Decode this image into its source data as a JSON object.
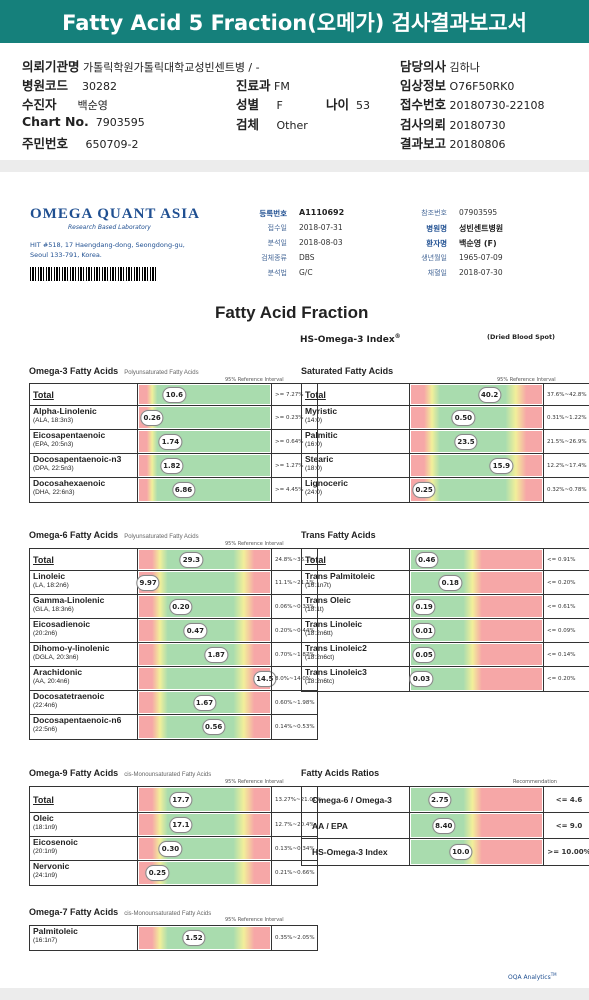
{
  "title": "Fatty Acid 5 Fraction(오메가) 검사결과보고서",
  "header": {
    "institution_label": "의뢰기관명",
    "institution": "가톨릭학원가톨릭대학교성빈센트병 / -",
    "doctor_label": "담당의사",
    "doctor": "김하나",
    "hospital_code_label": "병원코드",
    "hospital_code": "30282",
    "dept_label": "진료과",
    "dept": "FM",
    "clinical_label": "임상정보",
    "clinical": "O76F50RK0",
    "receiver_label": "수진자",
    "receiver": "백순영",
    "sex_label": "성별",
    "sex": "F",
    "age_label": "나이",
    "age": "53",
    "receipt_no_label": "접수번호",
    "receipt_no": "20180730-22108",
    "chart_label": "Chart No.",
    "chart": "7903595",
    "specimen_label": "검체",
    "specimen": "Other",
    "request_label": "검사의뢰",
    "request": "20180730",
    "rrn_label": "주민번호",
    "rrn": "650709-2",
    "report_label": "결과보고",
    "report": "20180806"
  },
  "lab": {
    "logo": "OMEGA QUANT ASIA",
    "logo_sub": "Research Based Laboratory",
    "address1": "HIT #518, 17 Haengdang-dong, Seongdong-gu,",
    "address2": "Seoul 133-791, Korea."
  },
  "meta": {
    "reg_no_label": "등록번호",
    "reg_no": "A1110692",
    "received_label": "접수일",
    "received": "2018-07-31",
    "analyzed_label": "분석일",
    "analyzed": "2018-08-03",
    "sample_label": "검체종류",
    "sample": "DBS",
    "method_label": "분석법",
    "method": "G/C",
    "ref_no_label": "참조번호",
    "ref_no": "07903595",
    "hospital_label": "병원명",
    "hospital": "성빈센트병원",
    "patient_label": "환자명",
    "patient": "백순영 (F)",
    "dob_label": "생년월일",
    "dob": "1965-07-09",
    "collected_label": "채혈일",
    "collected": "2018-07-30"
  },
  "report_title": "Fatty Acid Fraction",
  "hs_index_title": "HS-Omega-3 Index",
  "hs_reg": "®",
  "dried": "(Dried Blood Spot)",
  "ref_interval": "95% Reference Interval",
  "recommendation": "Recommendation",
  "footer": "OQA Analytics",
  "footer_tm": "TM",
  "sections": {
    "omega3": {
      "title": "Omega-3 Fatty Acids",
      "sub": "Polyunsaturated Fatty Acids",
      "rows": [
        {
          "name": "Total",
          "value": "10.6",
          "ref": ">= 7.27%",
          "pos": 0.27
        },
        {
          "name": "Alpha-Linolenic",
          "sub": "(ALA, 18:3n3)",
          "value": "0.26",
          "ref": ">= 0.23%",
          "pos": 0.1
        },
        {
          "name": "Eicosapentaenoic",
          "sub": "(EPA, 20:5n3)",
          "value": "1.74",
          "ref": ">= 0.64%",
          "pos": 0.24
        },
        {
          "name": "Docosapentaenoic-n3",
          "sub": "(DPA, 22:5n3)",
          "value": "1.82",
          "ref": ">= 1.27%",
          "pos": 0.25
        },
        {
          "name": "Docosahexaenoic",
          "sub": "(DHA, 22:6n3)",
          "value": "6.86",
          "ref": ">= 4.45%",
          "pos": 0.34
        }
      ]
    },
    "saturated": {
      "title": "Saturated Fatty Acids",
      "rows": [
        {
          "name": "Total",
          "value": "40.2",
          "ref": "37.6%~42.8%",
          "pos": 0.6
        },
        {
          "name": "Myristic",
          "sub": "(14:0)",
          "value": "0.50",
          "ref": "0.31%~1.22%",
          "pos": 0.4
        },
        {
          "name": "Palmitic",
          "sub": "(16:0)",
          "value": "23.5",
          "ref": "21.5%~26.9%",
          "pos": 0.42
        },
        {
          "name": "Stearic",
          "sub": "(18:0)",
          "value": "15.9",
          "ref": "12.2%~17.4%",
          "pos": 0.69
        },
        {
          "name": "Lignoceric",
          "sub": "(24:0)",
          "value": "0.25",
          "ref": "0.32%~0.78%",
          "pos": 0.1
        }
      ]
    },
    "omega6": {
      "title": "Omega-6 Fatty Acids",
      "sub": "Polyunsaturated Fatty Acids",
      "rows": [
        {
          "name": "Total",
          "value": "29.3",
          "ref": "24.8%~36.1%",
          "pos": 0.4
        },
        {
          "name": "Linoleic",
          "sub": "(LA, 18:2n6)",
          "value": "9.97",
          "ref": "11.1%~21.1%",
          "pos": 0.07
        },
        {
          "name": "Gamma-Linolenic",
          "sub": "(GLA, 18:3n6)",
          "value": "0.20",
          "ref": "0.06%~0.33%",
          "pos": 0.32
        },
        {
          "name": "Eicosadienoic",
          "sub": "(20:2n6)",
          "value": "0.47",
          "ref": "0.20%~0.44%",
          "pos": 0.43
        },
        {
          "name": "Dihomo-γ-linolenic",
          "sub": "(DGLA, 20:3n6)",
          "value": "1.87",
          "ref": "0.70%~1.87%",
          "pos": 0.59
        },
        {
          "name": "Arachidonic",
          "sub": "(AA, 20:4n6)",
          "value": "14.5",
          "ref": "8.0%~14.0%",
          "pos": 0.96
        },
        {
          "name": "Docosatetraenoic",
          "sub": "(22:4n6)",
          "value": "1.67",
          "ref": "0.60%~1.98%",
          "pos": 0.5
        },
        {
          "name": "Docosapentaenoic-n6",
          "sub": "(22:5n6)",
          "value": "0.56",
          "ref": "0.14%~0.53%",
          "pos": 0.57
        }
      ]
    },
    "trans": {
      "title": "Trans Fatty Acids",
      "rows": [
        {
          "name": "Total",
          "value": "0.46",
          "ref": "<= 0.91%",
          "pos": 0.12
        },
        {
          "name": "Trans Palmitoleic",
          "sub": "(16:1n7t)",
          "value": "0.18",
          "ref": "<= 0.20%",
          "pos": 0.3
        },
        {
          "name": "Trans Oleic",
          "sub": "(18:1t)",
          "value": "0.19",
          "ref": "<= 0.61%",
          "pos": 0.1
        },
        {
          "name": "Trans Linoleic",
          "sub": "(18:2n6tt)",
          "value": "0.01",
          "ref": "<= 0.09%",
          "pos": 0.1
        },
        {
          "name": "Trans Linoleic2",
          "sub": "(18:2n6ct)",
          "value": "0.05",
          "ref": "<= 0.14%",
          "pos": 0.1
        },
        {
          "name": "Trans Linoleic3",
          "sub": "(18:2n6tc)",
          "value": "0.03",
          "ref": "<= 0.20%",
          "pos": 0.08
        }
      ]
    },
    "omega9": {
      "title": "Omega-9 Fatty Acids",
      "sub": "cis-Monounsaturated Fatty Acids",
      "rows": [
        {
          "name": "Total",
          "value": "17.7",
          "ref": "13.27%~21.01%",
          "pos": 0.32
        },
        {
          "name": "Oleic",
          "sub": "(18:1n9)",
          "value": "17.1",
          "ref": "12.7%~20.4%",
          "pos": 0.32
        },
        {
          "name": "Eicosenoic",
          "sub": "(20:1n9)",
          "value": "0.30",
          "ref": "0.13%~0.34%",
          "pos": 0.24
        },
        {
          "name": "Nervonic",
          "sub": "(24:1n9)",
          "value": "0.25",
          "ref": "0.21%~0.66%",
          "pos": 0.14
        }
      ]
    },
    "omega7": {
      "title": "Omega-7 Fatty Acids",
      "sub": "cis-Monounsaturated Fatty Acids",
      "rows": [
        {
          "name": "Palmitoleic",
          "sub": "(16:1n7)",
          "value": "1.52",
          "ref": "0.35%~2.05%",
          "pos": 0.42
        }
      ]
    },
    "ratios": {
      "title": "Fatty Acids Ratios",
      "rows": [
        {
          "name": "Omega-6 / Omega-3",
          "value": "2.75",
          "ref": "<= 4.6",
          "pos": 0.22
        },
        {
          "name": "AA / EPA",
          "value": "8.40",
          "ref": "<= 9.0",
          "pos": 0.25
        },
        {
          "name": "HS-Omega-3 Index",
          "value": "10.0",
          "ref": ">= 10.00%",
          "pos": 0.38
        }
      ]
    }
  },
  "colors": {
    "green": "#a9dcae",
    "red": "#f6a7a7",
    "yellow": "#f2ef9a",
    "teal": "#15807b"
  }
}
